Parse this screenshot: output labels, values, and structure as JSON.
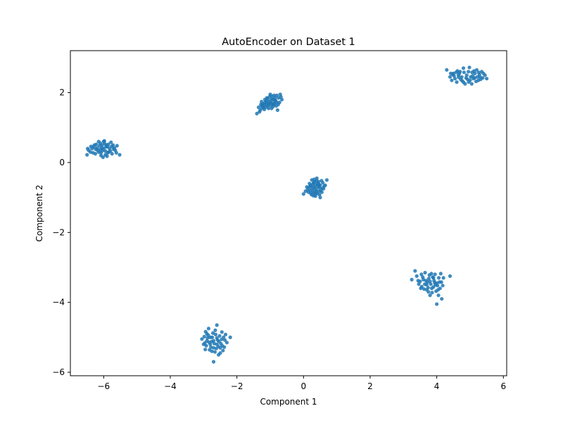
{
  "chart_data": {
    "type": "scatter",
    "title": "AutoEncoder on Dataset 1",
    "xlabel": "Component 1",
    "ylabel": "Component 2",
    "xlim": [
      -7.0,
      6.1
    ],
    "ylim": [
      -6.1,
      3.2
    ],
    "xticks": [
      -6,
      -4,
      -2,
      0,
      2,
      4,
      6
    ],
    "xtick_labels": [
      "−6",
      "−4",
      "−2",
      "0",
      "2",
      "4",
      "6"
    ],
    "yticks": [
      -6,
      -4,
      -2,
      0,
      2
    ],
    "ytick_labels": [
      "−6",
      "−4",
      "−2",
      "0",
      "2"
    ],
    "grid": false,
    "color": "#1f77b4",
    "series": [
      {
        "points": [
          [
            -6.05,
            0.42
          ],
          [
            -5.92,
            0.5
          ],
          [
            -6.18,
            0.35
          ],
          [
            -5.85,
            0.3
          ],
          [
            -6.3,
            0.45
          ],
          [
            -5.7,
            0.38
          ],
          [
            -6.1,
            0.55
          ],
          [
            -5.95,
            0.22
          ],
          [
            -6.4,
            0.3
          ],
          [
            -5.6,
            0.48
          ],
          [
            -6.0,
            0.4
          ],
          [
            -6.22,
            0.52
          ],
          [
            -5.78,
            0.58
          ],
          [
            -6.35,
            0.4
          ],
          [
            -5.88,
            0.45
          ],
          [
            -6.08,
            0.28
          ],
          [
            -5.75,
            0.25
          ],
          [
            -6.5,
            0.22
          ],
          [
            -5.52,
            0.22
          ],
          [
            -6.15,
            0.6
          ],
          [
            -5.98,
            0.62
          ],
          [
            -6.25,
            0.25
          ],
          [
            -5.65,
            0.35
          ],
          [
            -6.02,
            0.15
          ],
          [
            -5.9,
            0.18
          ],
          [
            -6.12,
            0.48
          ],
          [
            -5.82,
            0.4
          ],
          [
            -6.28,
            0.5
          ],
          [
            -5.72,
            0.5
          ],
          [
            -6.45,
            0.35
          ],
          [
            -5.95,
            0.33
          ],
          [
            -6.05,
            0.5
          ],
          [
            -6.2,
            0.42
          ],
          [
            -5.86,
            0.52
          ],
          [
            -6.0,
            0.6
          ],
          [
            -6.32,
            0.28
          ],
          [
            -5.68,
            0.42
          ],
          [
            -5.8,
            0.33
          ],
          [
            -6.1,
            0.38
          ],
          [
            -5.93,
            0.45
          ],
          [
            -6.15,
            0.3
          ],
          [
            -6.38,
            0.46
          ],
          [
            -5.62,
            0.28
          ],
          [
            -6.04,
            0.34
          ],
          [
            -5.97,
            0.54
          ],
          [
            -6.24,
            0.38
          ],
          [
            -5.76,
            0.46
          ],
          [
            -6.08,
            0.2
          ],
          [
            -5.88,
            0.28
          ],
          [
            -6.48,
            0.4
          ]
        ]
      },
      {
        "points": [
          [
            -1.0,
            1.7
          ],
          [
            -0.9,
            1.8
          ],
          [
            -1.1,
            1.65
          ],
          [
            -0.85,
            1.75
          ],
          [
            -1.2,
            1.6
          ],
          [
            -0.75,
            1.85
          ],
          [
            -1.05,
            1.55
          ],
          [
            -0.95,
            1.9
          ],
          [
            -1.3,
            1.5
          ],
          [
            -0.7,
            1.95
          ],
          [
            -1.4,
            1.4
          ],
          [
            -0.78,
            1.5
          ],
          [
            -1.15,
            1.72
          ],
          [
            -0.88,
            1.68
          ],
          [
            -1.25,
            1.62
          ],
          [
            -0.98,
            1.78
          ],
          [
            -1.08,
            1.82
          ],
          [
            -0.82,
            1.62
          ],
          [
            -1.18,
            1.52
          ],
          [
            -0.92,
            1.6
          ],
          [
            -1.35,
            1.58
          ],
          [
            -0.65,
            1.8
          ],
          [
            -1.02,
            1.88
          ],
          [
            -0.8,
            1.92
          ],
          [
            -1.12,
            1.75
          ],
          [
            -0.94,
            1.7
          ],
          [
            -1.22,
            1.68
          ],
          [
            -0.86,
            1.85
          ],
          [
            -1.06,
            1.62
          ],
          [
            -0.72,
            1.72
          ],
          [
            -1.28,
            1.66
          ],
          [
            -0.96,
            1.55
          ],
          [
            -1.16,
            1.8
          ],
          [
            -0.84,
            1.78
          ],
          [
            -1.04,
            1.74
          ],
          [
            -0.9,
            1.66
          ],
          [
            -1.24,
            1.56
          ],
          [
            -0.76,
            1.66
          ],
          [
            -1.1,
            1.85
          ],
          [
            -0.98,
            1.64
          ],
          [
            -1.32,
            1.45
          ],
          [
            -0.68,
            1.88
          ],
          [
            -1.0,
            1.95
          ],
          [
            -1.14,
            1.58
          ],
          [
            -0.88,
            1.92
          ],
          [
            -1.26,
            1.74
          ],
          [
            -0.8,
            1.72
          ],
          [
            -1.06,
            1.68
          ],
          [
            -0.94,
            1.82
          ],
          [
            -1.18,
            1.66
          ]
        ]
      },
      {
        "points": [
          [
            0.3,
            -0.7
          ],
          [
            0.4,
            -0.6
          ],
          [
            0.2,
            -0.8
          ],
          [
            0.5,
            -0.65
          ],
          [
            0.35,
            -0.9
          ],
          [
            0.45,
            -0.55
          ],
          [
            0.25,
            -0.5
          ],
          [
            0.6,
            -0.75
          ],
          [
            0.15,
            -0.85
          ],
          [
            0.55,
            -0.85
          ],
          [
            0.4,
            -0.45
          ],
          [
            0.3,
            -0.95
          ],
          [
            0.7,
            -0.5
          ],
          [
            0.0,
            -0.9
          ],
          [
            0.1,
            -0.7
          ],
          [
            0.5,
            -1.0
          ],
          [
            0.65,
            -0.65
          ],
          [
            0.28,
            -0.62
          ],
          [
            0.38,
            -0.78
          ],
          [
            0.22,
            -0.68
          ],
          [
            0.48,
            -0.72
          ],
          [
            0.33,
            -0.55
          ],
          [
            0.42,
            -0.88
          ],
          [
            0.18,
            -0.6
          ],
          [
            0.58,
            -0.58
          ],
          [
            0.36,
            -0.66
          ],
          [
            0.26,
            -0.76
          ],
          [
            0.46,
            -0.62
          ],
          [
            0.52,
            -0.8
          ],
          [
            0.12,
            -0.78
          ],
          [
            0.32,
            -0.48
          ],
          [
            0.44,
            -0.7
          ],
          [
            0.24,
            -0.92
          ],
          [
            0.62,
            -0.68
          ],
          [
            0.16,
            -0.72
          ],
          [
            0.38,
            -0.84
          ],
          [
            0.54,
            -0.52
          ],
          [
            0.28,
            -0.82
          ],
          [
            0.48,
            -0.92
          ],
          [
            0.06,
            -0.82
          ],
          [
            0.34,
            -0.74
          ],
          [
            0.4,
            -0.52
          ],
          [
            0.2,
            -0.66
          ],
          [
            0.56,
            -0.74
          ],
          [
            0.3,
            -0.58
          ],
          [
            0.46,
            -0.82
          ],
          [
            0.36,
            -0.96
          ],
          [
            0.22,
            -0.88
          ],
          [
            0.44,
            -0.64
          ],
          [
            0.32,
            -0.86
          ]
        ]
      },
      {
        "points": [
          [
            4.9,
            2.5
          ],
          [
            5.1,
            2.4
          ],
          [
            4.7,
            2.6
          ],
          [
            5.3,
            2.45
          ],
          [
            4.5,
            2.55
          ],
          [
            5.0,
            2.35
          ],
          [
            4.8,
            2.7
          ],
          [
            5.2,
            2.65
          ],
          [
            4.6,
            2.3
          ],
          [
            5.4,
            2.55
          ],
          [
            4.4,
            2.45
          ],
          [
            5.5,
            2.4
          ],
          [
            4.3,
            2.65
          ],
          [
            5.05,
            2.25
          ],
          [
            4.85,
            2.25
          ],
          [
            4.75,
            2.45
          ],
          [
            5.15,
            2.55
          ],
          [
            4.95,
            2.6
          ],
          [
            5.25,
            2.35
          ],
          [
            4.65,
            2.5
          ],
          [
            5.35,
            2.6
          ],
          [
            4.55,
            2.4
          ],
          [
            5.45,
            2.5
          ],
          [
            4.45,
            2.35
          ],
          [
            4.88,
            2.42
          ],
          [
            5.08,
            2.48
          ],
          [
            4.72,
            2.38
          ],
          [
            5.18,
            2.32
          ],
          [
            4.98,
            2.72
          ],
          [
            4.62,
            2.62
          ],
          [
            5.28,
            2.52
          ],
          [
            4.52,
            2.48
          ],
          [
            5.38,
            2.42
          ],
          [
            4.42,
            2.55
          ],
          [
            4.8,
            2.3
          ],
          [
            5.12,
            2.62
          ],
          [
            4.68,
            2.55
          ],
          [
            5.02,
            2.45
          ],
          [
            4.92,
            2.38
          ],
          [
            5.22,
            2.45
          ],
          [
            4.58,
            2.58
          ],
          [
            5.32,
            2.38
          ],
          [
            4.48,
            2.52
          ],
          [
            4.82,
            2.58
          ],
          [
            5.06,
            2.58
          ],
          [
            4.76,
            2.34
          ],
          [
            5.14,
            2.42
          ],
          [
            4.96,
            2.3
          ],
          [
            5.26,
            2.58
          ],
          [
            4.66,
            2.44
          ]
        ]
      },
      {
        "points": [
          [
            3.8,
            -3.4
          ],
          [
            3.9,
            -3.3
          ],
          [
            3.7,
            -3.5
          ],
          [
            4.0,
            -3.45
          ],
          [
            3.6,
            -3.35
          ],
          [
            3.85,
            -3.6
          ],
          [
            3.95,
            -3.2
          ],
          [
            3.75,
            -3.7
          ],
          [
            4.1,
            -3.6
          ],
          [
            3.5,
            -3.4
          ],
          [
            3.4,
            -3.25
          ],
          [
            4.2,
            -3.3
          ],
          [
            3.65,
            -3.15
          ],
          [
            4.05,
            -3.8
          ],
          [
            3.55,
            -3.55
          ],
          [
            3.25,
            -3.35
          ],
          [
            4.4,
            -3.25
          ],
          [
            3.35,
            -3.1
          ],
          [
            4.15,
            -3.9
          ],
          [
            4.0,
            -4.05
          ],
          [
            3.82,
            -3.48
          ],
          [
            3.92,
            -3.38
          ],
          [
            3.72,
            -3.42
          ],
          [
            4.02,
            -3.52
          ],
          [
            3.62,
            -3.62
          ],
          [
            3.88,
            -3.28
          ],
          [
            3.98,
            -3.68
          ],
          [
            3.78,
            -3.22
          ],
          [
            4.08,
            -3.42
          ],
          [
            3.58,
            -3.28
          ],
          [
            3.46,
            -3.48
          ],
          [
            4.18,
            -3.52
          ],
          [
            3.68,
            -3.38
          ],
          [
            4.06,
            -3.3
          ],
          [
            3.52,
            -3.6
          ],
          [
            3.86,
            -3.72
          ],
          [
            3.96,
            -3.5
          ],
          [
            3.74,
            -3.58
          ],
          [
            3.84,
            -3.18
          ],
          [
            4.12,
            -3.18
          ],
          [
            3.44,
            -3.38
          ],
          [
            3.64,
            -3.48
          ],
          [
            3.94,
            -3.44
          ],
          [
            3.76,
            -3.32
          ],
          [
            4.04,
            -3.64
          ],
          [
            3.54,
            -3.2
          ],
          [
            3.9,
            -3.56
          ],
          [
            3.7,
            -3.64
          ],
          [
            4.14,
            -3.42
          ],
          [
            3.8,
            -3.8
          ]
        ]
      },
      {
        "points": [
          [
            -2.7,
            -5.1
          ],
          [
            -2.6,
            -5.2
          ],
          [
            -2.8,
            -5.0
          ],
          [
            -2.5,
            -5.3
          ],
          [
            -2.9,
            -4.9
          ],
          [
            -2.4,
            -5.0
          ],
          [
            -3.0,
            -5.2
          ],
          [
            -2.65,
            -4.8
          ],
          [
            -2.75,
            -5.4
          ],
          [
            -2.3,
            -5.15
          ],
          [
            -2.95,
            -5.35
          ],
          [
            -2.55,
            -5.5
          ],
          [
            -2.85,
            -4.75
          ],
          [
            -2.45,
            -4.85
          ],
          [
            -2.2,
            -5.0
          ],
          [
            -3.05,
            -5.05
          ],
          [
            -2.6,
            -4.65
          ],
          [
            -2.7,
            -5.7
          ],
          [
            -2.5,
            -5.45
          ],
          [
            -2.9,
            -5.1
          ],
          [
            -2.68,
            -5.18
          ],
          [
            -2.58,
            -5.08
          ],
          [
            -2.78,
            -5.28
          ],
          [
            -2.48,
            -5.18
          ],
          [
            -2.88,
            -5.02
          ],
          [
            -2.38,
            -5.28
          ],
          [
            -2.98,
            -4.98
          ],
          [
            -2.62,
            -5.32
          ],
          [
            -2.72,
            -4.88
          ],
          [
            -2.34,
            -4.92
          ],
          [
            -2.92,
            -5.24
          ],
          [
            -2.52,
            -4.96
          ],
          [
            -2.82,
            -5.36
          ],
          [
            -2.42,
            -5.38
          ],
          [
            -2.74,
            -5.0
          ],
          [
            -2.64,
            -4.92
          ],
          [
            -2.84,
            -5.14
          ],
          [
            -2.46,
            -5.06
          ],
          [
            -2.94,
            -4.84
          ],
          [
            -2.36,
            -5.08
          ],
          [
            -2.56,
            -5.26
          ],
          [
            -2.76,
            -5.12
          ],
          [
            -2.66,
            -5.42
          ],
          [
            -2.86,
            -4.94
          ],
          [
            -2.54,
            -5.12
          ],
          [
            -2.96,
            -5.16
          ],
          [
            -2.44,
            -5.24
          ],
          [
            -2.8,
            -5.2
          ],
          [
            -2.6,
            -5.02
          ],
          [
            -2.7,
            -5.3
          ]
        ]
      }
    ]
  }
}
